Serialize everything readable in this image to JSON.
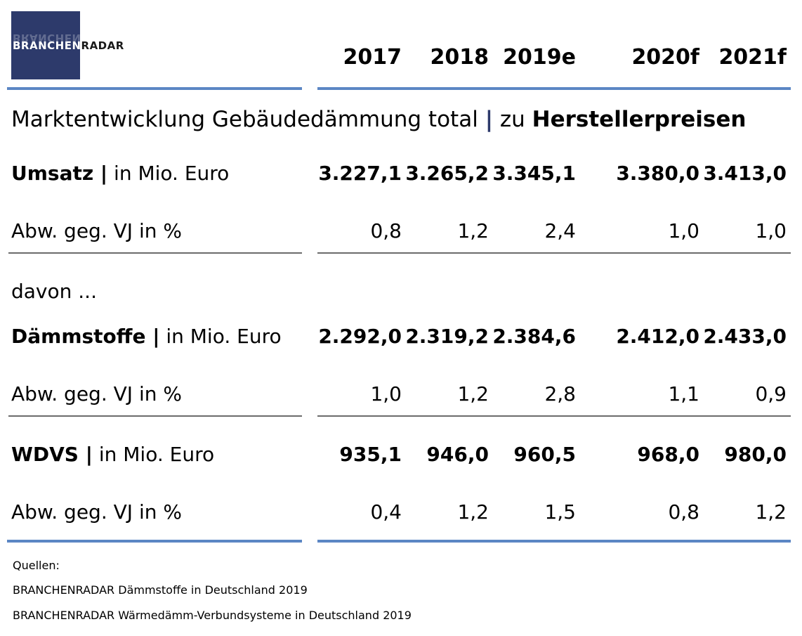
{
  "logo": {
    "text_light": "BRANCHEN",
    "text_dark": "RADAR"
  },
  "columns": [
    "2017",
    "2018",
    "2019e",
    "2020f",
    "2021f"
  ],
  "title": {
    "main": "Marktentwicklung Gebäudedämmung total",
    "separator": "|",
    "suffix_plain": "zu",
    "suffix_bold": "Herstellerpreisen"
  },
  "rows": [
    {
      "label_bold": "Umsatz |",
      "label_plain": "in Mio. Euro",
      "values": [
        "3.227,1",
        "3.265,2",
        "3.345,1",
        "3.380,0",
        "3.413,0"
      ],
      "bold": true
    },
    {
      "label_bold": "",
      "label_plain": "Abw. geg. VJ in %",
      "values": [
        "0,8",
        "1,2",
        "2,4",
        "1,0",
        "1,0"
      ],
      "bold": false
    },
    {
      "label_bold": "",
      "label_plain": "davon ...",
      "values": [],
      "bold": false
    },
    {
      "label_bold": "Dämmstoffe |",
      "label_plain": "in Mio. Euro",
      "values": [
        "2.292,0",
        "2.319,2",
        "2.384,6",
        "2.412,0",
        "2.433,0"
      ],
      "bold": true
    },
    {
      "label_bold": "",
      "label_plain": "Abw. geg. VJ in %",
      "values": [
        "1,0",
        "1,2",
        "2,8",
        "1,1",
        "0,9"
      ],
      "bold": false
    },
    {
      "label_bold": "WDVS |",
      "label_plain": "in Mio. Euro",
      "values": [
        "935,1",
        "946,0",
        "960,5",
        "968,0",
        "980,0"
      ],
      "bold": true
    },
    {
      "label_bold": "",
      "label_plain": "Abw. geg. VJ in %",
      "values": [
        "0,4",
        "1,2",
        "1,5",
        "0,8",
        "1,2"
      ],
      "bold": false
    }
  ],
  "sources": {
    "heading": "Quellen:",
    "lines": [
      "BRANCHENRADAR Dämmstoffe in Deutschland 2019",
      "BRANCHENRADAR Wärmedämm-Verbundsysteme in Deutschland 2019"
    ]
  },
  "chart_data": {
    "type": "table",
    "title": "Marktentwicklung Gebäudedämmung total | zu Herstellerpreisen",
    "columns": [
      "2017",
      "2018",
      "2019e",
      "2020f",
      "2021f"
    ],
    "rows": [
      {
        "name": "Umsatz | in Mio. Euro",
        "values": [
          3227.1,
          3265.2,
          3345.1,
          3380.0,
          3413.0
        ]
      },
      {
        "name": "Abw. geg. VJ in %",
        "values": [
          0.8,
          1.2,
          2.4,
          1.0,
          1.0
        ]
      },
      {
        "name": "Dämmstoffe | in Mio. Euro",
        "values": [
          2292.0,
          2319.2,
          2384.6,
          2412.0,
          2433.0
        ]
      },
      {
        "name": "Abw. geg. VJ in %",
        "values": [
          1.0,
          1.2,
          2.8,
          1.1,
          0.9
        ]
      },
      {
        "name": "WDVS | in Mio. Euro",
        "values": [
          935.1,
          946.0,
          960.5,
          968.0,
          980.0
        ]
      },
      {
        "name": "Abw. geg. VJ in %",
        "values": [
          0.4,
          1.2,
          1.5,
          0.8,
          1.2
        ]
      }
    ]
  }
}
